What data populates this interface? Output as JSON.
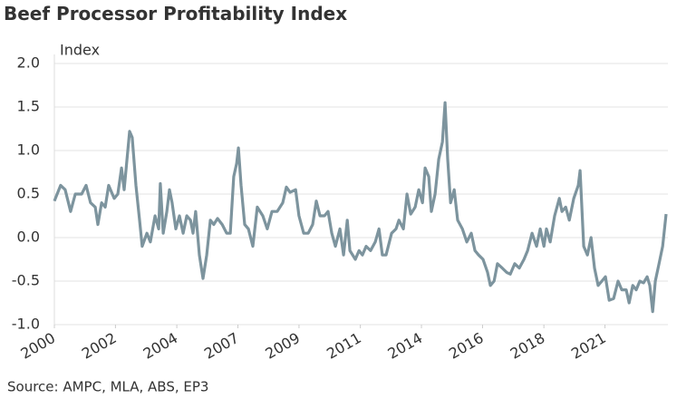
{
  "chart_data": {
    "type": "line",
    "title": "Beef Processor Profitability Index",
    "y_axis_label": "Index",
    "source": "Source: AMPC, MLA, ABS, EP3",
    "xlim": [
      2000,
      2023.4
    ],
    "xticks": [
      2000,
      {
        "value": 2002.33,
        "label": "2002"
      },
      {
        "value": 2004.67,
        "label": "2004"
      },
      2007,
      {
        "value": 2009.33,
        "label": "2009"
      },
      {
        "value": 2011.67,
        "label": "2011"
      },
      2014,
      {
        "value": 2016.33,
        "label": "2016"
      },
      {
        "value": 2018.67,
        "label": "2018"
      },
      2021
    ],
    "ylim": [
      -1,
      2
    ],
    "yticks": [
      {
        "value": -1,
        "label": "-1.0"
      },
      -0.5,
      {
        "value": 0,
        "label": "0.0"
      },
      0.5,
      {
        "value": 1,
        "label": "1.0"
      },
      1.5,
      {
        "value": 2,
        "label": "2.0"
      }
    ],
    "grid": true,
    "series": [
      {
        "color": "#7d949e",
        "x": [
          2000.0,
          2000.24,
          2000.41,
          2000.62,
          2000.8,
          2001.04,
          2001.21,
          2001.38,
          2001.56,
          2001.66,
          2001.8,
          2001.94,
          2002.07,
          2002.28,
          2002.42,
          2002.56,
          2002.66,
          2002.87,
          2002.97,
          2003.11,
          2003.25,
          2003.35,
          2003.53,
          2003.66,
          2003.84,
          2003.98,
          2004.04,
          2004.15,
          2004.29,
          2004.39,
          2004.49,
          2004.63,
          2004.77,
          2004.91,
          2005.05,
          2005.19,
          2005.29,
          2005.39,
          2005.53,
          2005.67,
          2005.81,
          2005.95,
          2006.08,
          2006.22,
          2006.4,
          2006.57,
          2006.71,
          2006.84,
          2006.95,
          2007.02,
          2007.12,
          2007.26,
          2007.4,
          2007.57,
          2007.74,
          2007.95,
          2008.12,
          2008.3,
          2008.5,
          2008.71,
          2008.85,
          2008.99,
          2009.2,
          2009.33,
          2009.51,
          2009.68,
          2009.85,
          2009.99,
          2010.13,
          2010.3,
          2010.44,
          2010.58,
          2010.72,
          2010.89,
          2011.03,
          2011.17,
          2011.27,
          2011.48,
          2011.62,
          2011.75,
          2011.89,
          2012.06,
          2012.24,
          2012.38,
          2012.51,
          2012.65,
          2012.86,
          2013.03,
          2013.14,
          2013.31,
          2013.45,
          2013.59,
          2013.76,
          2013.9,
          2014.04,
          2014.14,
          2014.28,
          2014.38,
          2014.52,
          2014.66,
          2014.8,
          2014.9,
          2015.0,
          2015.11,
          2015.25,
          2015.38,
          2015.56,
          2015.73,
          2015.9,
          2016.04,
          2016.18,
          2016.35,
          2016.52,
          2016.63,
          2016.77,
          2016.9,
          2017.08,
          2017.25,
          2017.39,
          2017.56,
          2017.73,
          2017.91,
          2018.05,
          2018.22,
          2018.39,
          2018.53,
          2018.67,
          2018.77,
          2018.91,
          2019.08,
          2019.26,
          2019.36,
          2019.5,
          2019.64,
          2019.81,
          2019.98,
          2020.05,
          2020.19,
          2020.33,
          2020.47,
          2020.6,
          2020.74,
          2020.88,
          2021.02,
          2021.16,
          2021.33,
          2021.5,
          2021.64,
          2021.81,
          2021.92,
          2022.06,
          2022.19,
          2022.33,
          2022.47,
          2022.61,
          2022.71,
          2022.82,
          2022.92,
          2023.06,
          2023.2,
          2023.33
        ],
        "values": [
          0.42,
          0.6,
          0.55,
          0.3,
          0.5,
          0.5,
          0.6,
          0.4,
          0.35,
          0.15,
          0.4,
          0.35,
          0.6,
          0.45,
          0.5,
          0.8,
          0.55,
          1.22,
          1.15,
          0.6,
          0.2,
          -0.1,
          0.05,
          -0.05,
          0.25,
          0.1,
          0.62,
          0.05,
          0.3,
          0.55,
          0.4,
          0.1,
          0.25,
          0.05,
          0.25,
          0.2,
          0.05,
          0.3,
          -0.2,
          -0.47,
          -0.2,
          0.2,
          0.15,
          0.22,
          0.15,
          0.05,
          0.05,
          0.7,
          0.85,
          1.03,
          0.6,
          0.15,
          0.1,
          -0.1,
          0.35,
          0.25,
          0.1,
          0.3,
          0.3,
          0.4,
          0.58,
          0.52,
          0.55,
          0.25,
          0.05,
          0.05,
          0.15,
          0.42,
          0.25,
          0.25,
          0.3,
          0.05,
          -0.1,
          0.1,
          -0.2,
          0.2,
          -0.15,
          -0.25,
          -0.15,
          -0.2,
          -0.1,
          -0.15,
          -0.05,
          0.1,
          -0.2,
          -0.2,
          0.05,
          0.1,
          0.2,
          0.1,
          0.5,
          0.27,
          0.35,
          0.55,
          0.4,
          0.8,
          0.7,
          0.3,
          0.5,
          0.9,
          1.1,
          1.55,
          0.9,
          0.4,
          0.55,
          0.2,
          0.1,
          -0.05,
          0.05,
          -0.15,
          -0.2,
          -0.25,
          -0.4,
          -0.55,
          -0.5,
          -0.3,
          -0.35,
          -0.4,
          -0.42,
          -0.3,
          -0.35,
          -0.25,
          -0.15,
          0.05,
          -0.1,
          0.1,
          -0.1,
          0.1,
          -0.05,
          0.25,
          0.45,
          0.3,
          0.35,
          0.2,
          0.45,
          0.6,
          0.77,
          -0.1,
          -0.2,
          0.0,
          -0.35,
          -0.55,
          -0.5,
          -0.45,
          -0.72,
          -0.7,
          -0.5,
          -0.6,
          -0.6,
          -0.75,
          -0.55,
          -0.6,
          -0.5,
          -0.52,
          -0.45,
          -0.55,
          -0.85,
          -0.5,
          -0.3,
          -0.1,
          0.27
        ]
      }
    ]
  }
}
